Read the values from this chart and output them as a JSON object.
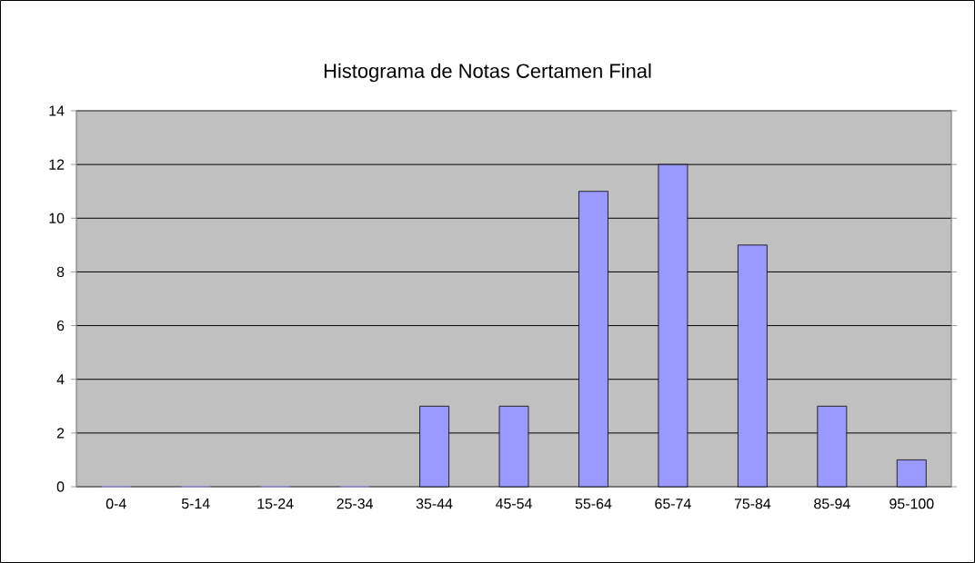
{
  "chart_data": {
    "type": "bar",
    "title": "Histograma de Notas Certamen Final",
    "categories": [
      "0-4",
      "5-14",
      "15-24",
      "25-34",
      "35-44",
      "45-54",
      "55-64",
      "65-74",
      "75-84",
      "85-94",
      "95-100"
    ],
    "values": [
      0,
      0,
      0,
      0,
      3,
      3,
      11,
      12,
      9,
      3,
      1
    ],
    "color": "#9999ff",
    "ylim": [
      0,
      14
    ],
    "yticks": [
      0,
      2,
      4,
      6,
      8,
      10,
      12,
      14
    ],
    "grid": "y"
  }
}
